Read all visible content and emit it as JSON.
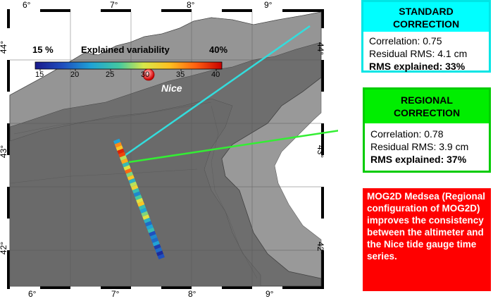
{
  "map": {
    "lon_ticks": [
      "6°",
      "7°",
      "8°",
      "9°"
    ],
    "lat_ticks": [
      "44°",
      "43°",
      "42°"
    ],
    "city": "Nice",
    "colorbar": {
      "title_left": "15 %",
      "title_center": "Explained variability",
      "title_right": "40%",
      "tick_labels": [
        "15",
        "20",
        "25",
        "30",
        "35",
        "40"
      ]
    },
    "track_values": [
      0.3,
      0.8,
      0.7,
      0.95,
      0.9,
      0.55,
      0.75,
      0.4,
      0.6,
      0.85,
      0.5,
      0.7,
      0.35,
      0.55,
      0.65,
      0.4,
      0.25,
      0.45,
      0.6,
      0.7,
      0.4,
      0.3,
      0.5,
      0.6,
      0.35,
      0.2,
      0.3,
      0.4,
      0.15,
      0.25,
      0.2,
      0.3,
      0.1,
      0.2,
      0.05,
      0.15
    ],
    "colors": {
      "track_connector_standard": "#33dddd",
      "track_connector_regional": "#33ee33"
    }
  },
  "standard_box": {
    "title_line1": "STANDARD",
    "title_line2": "CORRECTION",
    "correlation": "Correlation:  0.75",
    "residual": "Residual RMS: 4.1 cm",
    "explained": "RMS explained: 33%",
    "color": "#00ffff"
  },
  "regional_box": {
    "title_line1": "REGIONAL",
    "title_line2": "CORRECTION",
    "correlation": "Correlation:  0.78",
    "residual": "Residual RMS: 3.9 cm",
    "explained": "RMS explained: 37%",
    "color": "#00ee00"
  },
  "info_box": {
    "text": "MOG2D Medsea (Regional configuration of MOG2D) improves the consistency between the altimeter and the Nice tide gauge time series.",
    "color": "#ff0000"
  }
}
